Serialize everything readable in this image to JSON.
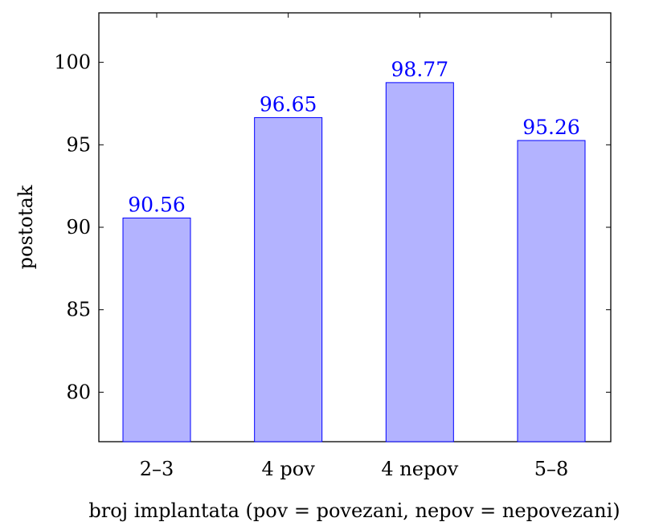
{
  "chart_data": {
    "type": "bar",
    "categories": [
      "2–3",
      "4 pov",
      "4 nepov",
      "5–8"
    ],
    "values": [
      90.56,
      96.65,
      98.77,
      95.26
    ],
    "value_labels": [
      "90.56",
      "96.65",
      "98.77",
      "95.26"
    ],
    "title": "",
    "xlabel": "broj implantata (pov = povezani, nepov = nepovezani)",
    "ylabel": "postotak",
    "ylim": [
      77,
      103
    ],
    "yticks": [
      80,
      85,
      90,
      95,
      100
    ],
    "ytick_labels": [
      "80",
      "85",
      "90",
      "95",
      "100"
    ],
    "grid": false,
    "legend": "none",
    "colors": {
      "bar_fill": "#b3b3ff",
      "bar_stroke": "#0000ff",
      "data_label": "#0000ff",
      "axis": "#000000"
    }
  }
}
